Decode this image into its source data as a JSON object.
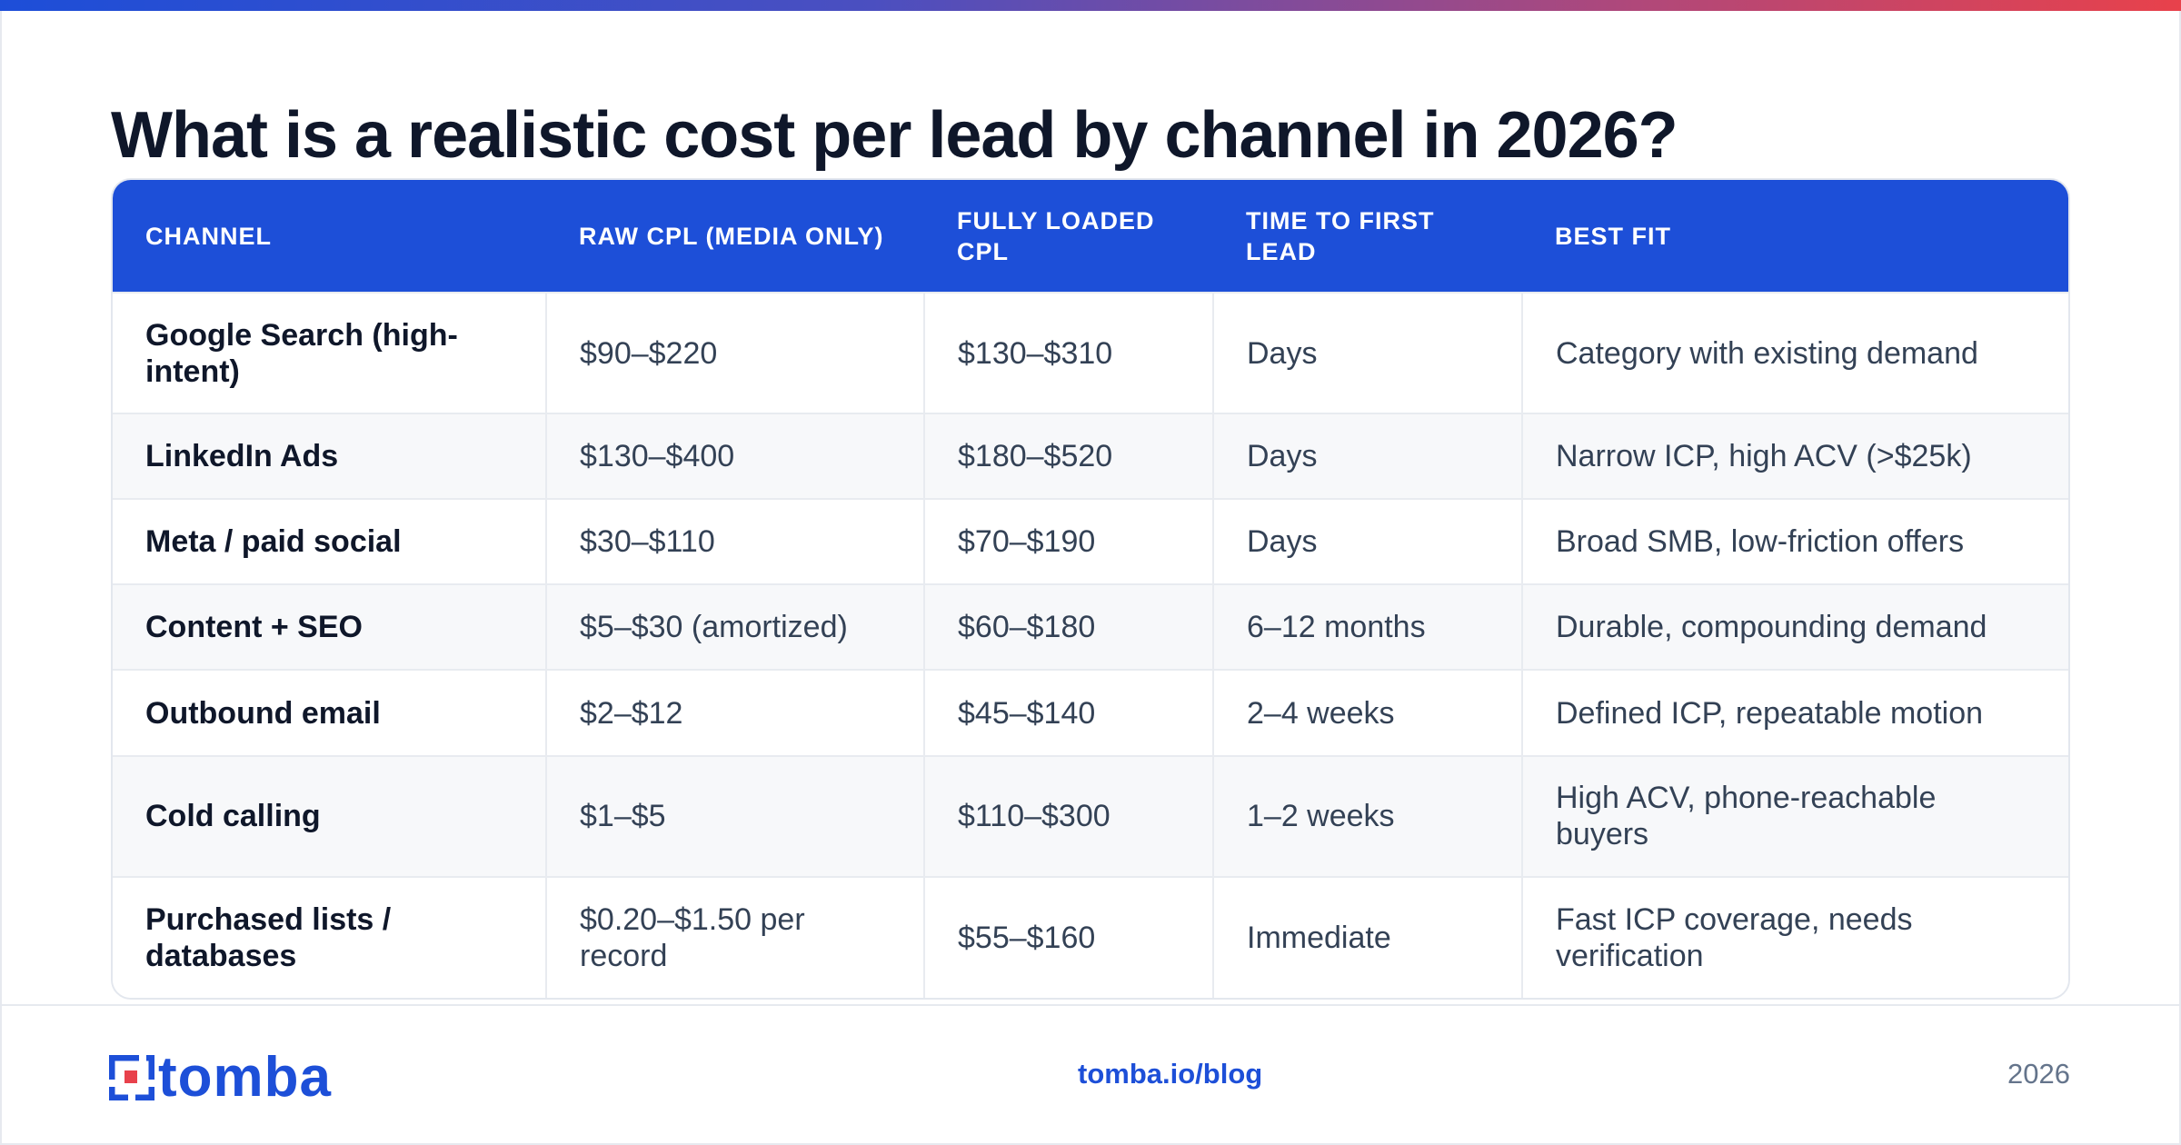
{
  "colors": {
    "accent": "#1d4fd8",
    "title_text": "#0f172a",
    "body_text": "#334155",
    "gradient_start": "#1d4ed8",
    "gradient_end": "#e8414b",
    "logo_red": "#e8414b"
  },
  "title": "What is a realistic cost per lead by channel in 2026?",
  "table": {
    "headers": {
      "channel": "CHANNEL",
      "raw_cpl": "RAW CPL (MEDIA ONLY)",
      "loaded_cpl": "FULLY LOADED CPL",
      "time_to_lead": "TIME TO FIRST LEAD",
      "best_fit": "BEST FIT"
    },
    "rows": [
      {
        "channel": "Google Search (high-intent)",
        "raw_cpl": "$90–$220",
        "loaded_cpl": "$130–$310",
        "time_to_lead": "Days",
        "best_fit": "Category with existing demand"
      },
      {
        "channel": "LinkedIn Ads",
        "raw_cpl": "$130–$400",
        "loaded_cpl": "$180–$520",
        "time_to_lead": "Days",
        "best_fit": "Narrow ICP, high ACV (>$25k)"
      },
      {
        "channel": "Meta / paid social",
        "raw_cpl": "$30–$110",
        "loaded_cpl": "$70–$190",
        "time_to_lead": "Days",
        "best_fit": "Broad SMB, low-friction offers"
      },
      {
        "channel": "Content + SEO",
        "raw_cpl": "$5–$30 (amortized)",
        "loaded_cpl": "$60–$180",
        "time_to_lead": "6–12 months",
        "best_fit": "Durable, compounding demand"
      },
      {
        "channel": "Outbound email",
        "raw_cpl": "$2–$12",
        "loaded_cpl": "$45–$140",
        "time_to_lead": "2–4 weeks",
        "best_fit": "Defined ICP, repeatable motion"
      },
      {
        "channel": "Cold calling",
        "raw_cpl": "$1–$5",
        "loaded_cpl": "$110–$300",
        "time_to_lead": "1–2 weeks",
        "best_fit": "High ACV, phone-reachable buyers"
      },
      {
        "channel": "Purchased lists / databases",
        "raw_cpl": "$0.20–$1.50 per record",
        "loaded_cpl": "$55–$160",
        "time_to_lead": "Immediate",
        "best_fit": "Fast ICP coverage, needs verification"
      }
    ]
  },
  "footer": {
    "logo_text": "tomba",
    "link": "tomba.io/blog",
    "year": "2026",
    "logo_icon": "tomba-logo-icon"
  }
}
